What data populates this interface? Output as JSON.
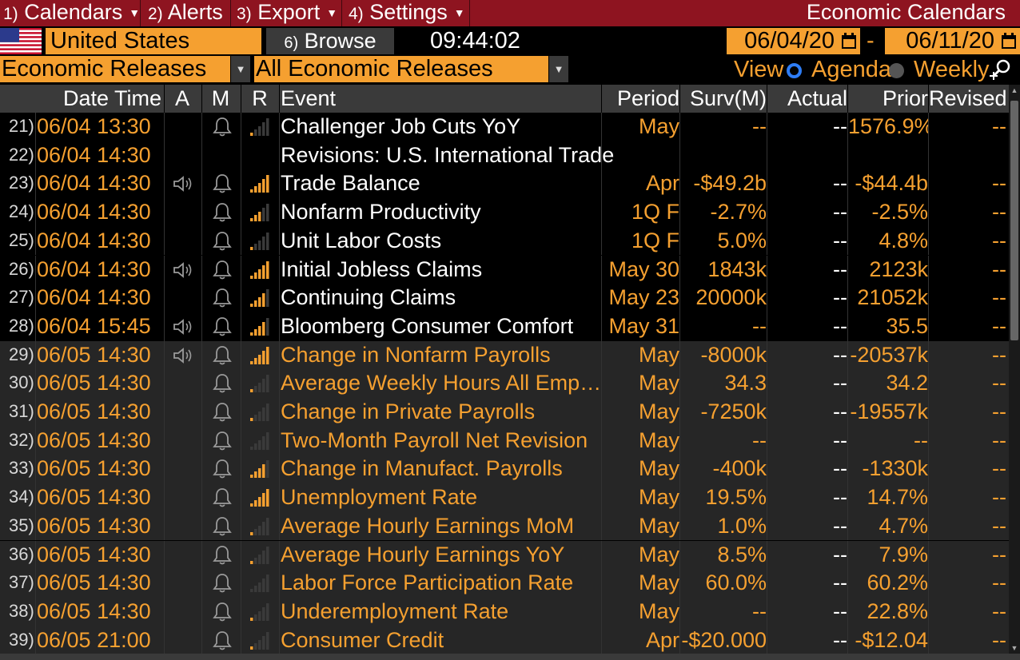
{
  "menubar": {
    "items": [
      {
        "num": "1)",
        "label": "Calendars",
        "caret": true
      },
      {
        "num": "2)",
        "label": "Alerts",
        "caret": false
      },
      {
        "num": "3)",
        "label": "Export",
        "caret": true
      },
      {
        "num": "4)",
        "label": "Settings",
        "caret": true
      }
    ],
    "title": "Economic Calendars",
    "color": "#8e1420"
  },
  "toolbar": {
    "country": "United States",
    "browse_num": "6)",
    "browse_label": "Browse",
    "clock": "09:44:02",
    "date_from": "06/04/20",
    "date_sep": "-",
    "date_to": "06/11/20"
  },
  "filters": {
    "category": "Economic Releases",
    "subcategory": "All Economic Releases",
    "view_label": "View",
    "view_options": [
      "Agenda",
      "Weekly"
    ],
    "view_selected": "Agenda"
  },
  "columns": {
    "datetime": "Date Time",
    "a": "A",
    "m": "M",
    "r": "R",
    "event": "Event",
    "period": "Period",
    "surv": "Surv(M)",
    "actual": "Actual",
    "prior": "Prior",
    "revised": "Revised"
  },
  "colors": {
    "accent": "#f5a030",
    "header_bg": "#3a3a3a",
    "radio_on": "#2e7df5"
  },
  "rows": [
    {
      "num": "21)",
      "date": "06/04 13:30",
      "speaker": false,
      "bell": true,
      "relevance": 1,
      "event": "Challenger Job Cuts YoY",
      "period": "May",
      "surv": "--",
      "actual": "--",
      "prior": "1576.9%",
      "revised": "--",
      "today": true
    },
    {
      "num": "22)",
      "date": "06/04 14:30",
      "speaker": false,
      "bell": false,
      "relevance": 0,
      "event": " Revisions: U.S. International Trade",
      "period": "",
      "surv": "",
      "actual": "",
      "prior": "",
      "revised": "",
      "today": true,
      "full": true
    },
    {
      "num": "23)",
      "date": "06/04 14:30",
      "speaker": true,
      "bell": true,
      "relevance": 5,
      "event": "Trade Balance",
      "period": "Apr",
      "surv": "-$49.2b",
      "actual": "--",
      "prior": "-$44.4b",
      "revised": "--",
      "today": true
    },
    {
      "num": "24)",
      "date": "06/04 14:30",
      "speaker": false,
      "bell": true,
      "relevance": 3,
      "event": "Nonfarm Productivity",
      "period": "1Q F",
      "surv": "-2.7%",
      "actual": "--",
      "prior": "-2.5%",
      "revised": "--",
      "today": true
    },
    {
      "num": "25)",
      "date": "06/04 14:30",
      "speaker": false,
      "bell": true,
      "relevance": 1,
      "event": "Unit Labor Costs",
      "period": "1Q F",
      "surv": "5.0%",
      "actual": "--",
      "prior": "4.8%",
      "revised": "--",
      "today": true
    },
    {
      "num": "26)",
      "date": "06/04 14:30",
      "speaker": true,
      "bell": true,
      "relevance": 5,
      "event": "Initial Jobless Claims",
      "period": "May 30",
      "surv": "1843k",
      "actual": "--",
      "prior": "2123k",
      "revised": "--",
      "today": true
    },
    {
      "num": "27)",
      "date": "06/04 14:30",
      "speaker": false,
      "bell": true,
      "relevance": 4,
      "event": "Continuing Claims",
      "period": "May 23",
      "surv": "20000k",
      "actual": "--",
      "prior": "21052k",
      "revised": "--",
      "today": true
    },
    {
      "num": "28)",
      "date": "06/04 15:45",
      "speaker": true,
      "bell": true,
      "relevance": 4,
      "event": "Bloomberg Consumer Comfort",
      "period": "May 31",
      "surv": "--",
      "actual": "--",
      "prior": "35.5",
      "revised": "--",
      "today": true
    },
    {
      "num": "29)",
      "date": "06/05 14:30",
      "speaker": true,
      "bell": true,
      "relevance": 5,
      "event": "Change in Nonfarm Payrolls",
      "period": "May",
      "surv": "-8000k",
      "actual": "--",
      "prior": "-20537k",
      "revised": "--",
      "today": false
    },
    {
      "num": "30)",
      "date": "06/05 14:30",
      "speaker": false,
      "bell": true,
      "relevance": 1,
      "event": "Average Weekly Hours All Employees",
      "period": "May",
      "surv": "34.3",
      "actual": "--",
      "prior": "34.2",
      "revised": "--",
      "today": false
    },
    {
      "num": "31)",
      "date": "06/05 14:30",
      "speaker": false,
      "bell": true,
      "relevance": 1,
      "event": "Change in Private Payrolls",
      "period": "May",
      "surv": "-7250k",
      "actual": "--",
      "prior": "-19557k",
      "revised": "--",
      "today": false
    },
    {
      "num": "32)",
      "date": "06/05 14:30",
      "speaker": false,
      "bell": true,
      "relevance": 0,
      "event": "Two-Month Payroll Net Revision",
      "period": "May",
      "surv": "--",
      "actual": "--",
      "prior": "--",
      "revised": "--",
      "today": false
    },
    {
      "num": "33)",
      "date": "06/05 14:30",
      "speaker": false,
      "bell": true,
      "relevance": 4,
      "event": "Change in Manufact. Payrolls",
      "period": "May",
      "surv": "-400k",
      "actual": "--",
      "prior": "-1330k",
      "revised": "--",
      "today": false
    },
    {
      "num": "34)",
      "date": "06/05 14:30",
      "speaker": false,
      "bell": true,
      "relevance": 5,
      "event": "Unemployment Rate",
      "period": "May",
      "surv": "19.5%",
      "actual": "--",
      "prior": "14.7%",
      "revised": "--",
      "today": false
    },
    {
      "num": "35)",
      "date": "06/05 14:30",
      "speaker": false,
      "bell": true,
      "relevance": 1,
      "event": "Average Hourly Earnings MoM",
      "period": "May",
      "surv": "1.0%",
      "actual": "--",
      "prior": "4.7%",
      "revised": "--",
      "today": false
    },
    {
      "num": "36)",
      "date": "06/05 14:30",
      "speaker": false,
      "bell": true,
      "relevance": 1,
      "event": "Average Hourly Earnings YoY",
      "period": "May",
      "surv": "8.5%",
      "actual": "--",
      "prior": "7.9%",
      "revised": "--",
      "today": false
    },
    {
      "num": "37)",
      "date": "06/05 14:30",
      "speaker": false,
      "bell": true,
      "relevance": 0,
      "event": "Labor Force Participation Rate",
      "period": "May",
      "surv": "60.0%",
      "actual": "--",
      "prior": "60.2%",
      "revised": "--",
      "today": false
    },
    {
      "num": "38)",
      "date": "06/05 14:30",
      "speaker": false,
      "bell": true,
      "relevance": 1,
      "event": "Underemployment Rate",
      "period": "May",
      "surv": "--",
      "actual": "--",
      "prior": "22.8%",
      "revised": "--",
      "today": false
    },
    {
      "num": "39)",
      "date": "06/05 21:00",
      "speaker": false,
      "bell": true,
      "relevance": 1,
      "event": "Consumer Credit",
      "period": "Apr",
      "surv": "-$20.000",
      "actual": "--",
      "prior": "-$12.04",
      "revised": "--",
      "today": false
    }
  ]
}
